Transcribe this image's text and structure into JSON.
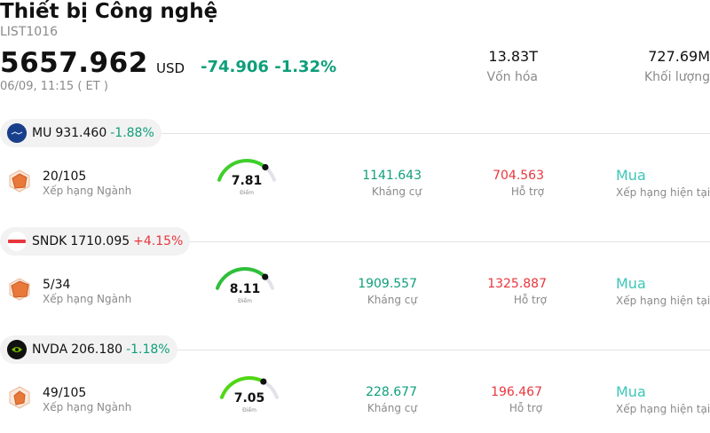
{
  "header": {
    "title": "Thiết bị Công nghệ",
    "code": "LIST1016",
    "price": "5657.962",
    "currency": "USD",
    "change": "-74.906",
    "change_pct": "-1.32%",
    "datetime": "06/09, 11:15  ( ET )",
    "market_cap_value": "13.83T",
    "market_cap_label": "Vốn hóa",
    "volume_value": "727.69M",
    "volume_label": "Khối lượng"
  },
  "colors": {
    "negative": "#0e9f7a",
    "positive": "#e8363d",
    "rating": "#3cc7b7",
    "gauge_active": "#3fcf2a"
  },
  "stocks": [
    {
      "symbol": "MU",
      "price": "931.460",
      "change_pct": "-1.88%",
      "direction": "neg",
      "logo": "micron-logo",
      "rank": "20/105",
      "rank_label": "Xếp hạng Ngành",
      "score": "7.81",
      "score_fraction": 0.781,
      "score_label": "Điểm",
      "resistance": "1141.643",
      "resistance_label": "Kháng cự",
      "support": "704.563",
      "support_label": "Hỗ trợ",
      "rating": "Mua",
      "rating_label": "Xếp hạng hiện tại"
    },
    {
      "symbol": "SNDK",
      "price": "1710.095",
      "change_pct": "+4.15%",
      "direction": "pos",
      "logo": "sandisk-logo",
      "rank": "5/34",
      "rank_label": "Xếp hạng Ngành",
      "score": "8.11",
      "score_fraction": 0.811,
      "score_label": "Điểm",
      "resistance": "1909.557",
      "resistance_label": "Kháng cự",
      "support": "1325.887",
      "support_label": "Hỗ trợ",
      "rating": "Mua",
      "rating_label": "Xếp hạng hiện tại"
    },
    {
      "symbol": "NVDA",
      "price": "206.180",
      "change_pct": "-1.18%",
      "direction": "neg",
      "logo": "nvidia-logo",
      "rank": "49/105",
      "rank_label": "Xếp hạng Ngành",
      "score": "7.05",
      "score_fraction": 0.705,
      "score_label": "Điểm",
      "resistance": "228.677",
      "resistance_label": "Kháng cự",
      "support": "196.467",
      "support_label": "Hỗ trợ",
      "rating": "Mua",
      "rating_label": "Xếp hạng hiện tại"
    }
  ]
}
